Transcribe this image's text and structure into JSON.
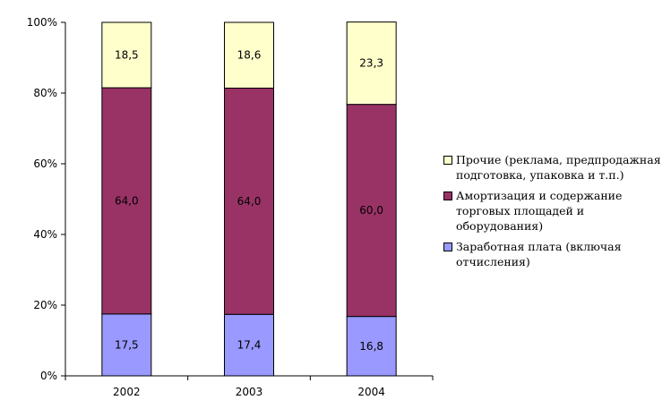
{
  "chart_data": {
    "type": "bar",
    "stacked": true,
    "categories": [
      "2002",
      "2003",
      "2004"
    ],
    "series": [
      {
        "name": "Заработная плата (включая отчисления)",
        "values": [
          17.5,
          17.4,
          16.8
        ],
        "labels": [
          "17,5",
          "17,4",
          "16,8"
        ],
        "color": "#9999ff"
      },
      {
        "name": "Амортизация и содержание торговых площадей и оборудования)",
        "values": [
          64.0,
          64.0,
          60.0
        ],
        "labels": [
          "64,0",
          "64,0",
          "60,0"
        ],
        "color": "#993366"
      },
      {
        "name": "Прочие (реклама, предпродажная подготовка, упаковка и т.п.)",
        "values": [
          18.5,
          18.6,
          23.3
        ],
        "labels": [
          "18,5",
          "18,6",
          "23,3"
        ],
        "color": "#ffffcc"
      }
    ],
    "y_ticks": [
      "0%",
      "20%",
      "40%",
      "60%",
      "80%",
      "100%"
    ],
    "ylim": [
      0,
      100
    ],
    "grid": false,
    "legend_position": "right",
    "title": "",
    "xlabel": "",
    "ylabel": ""
  }
}
